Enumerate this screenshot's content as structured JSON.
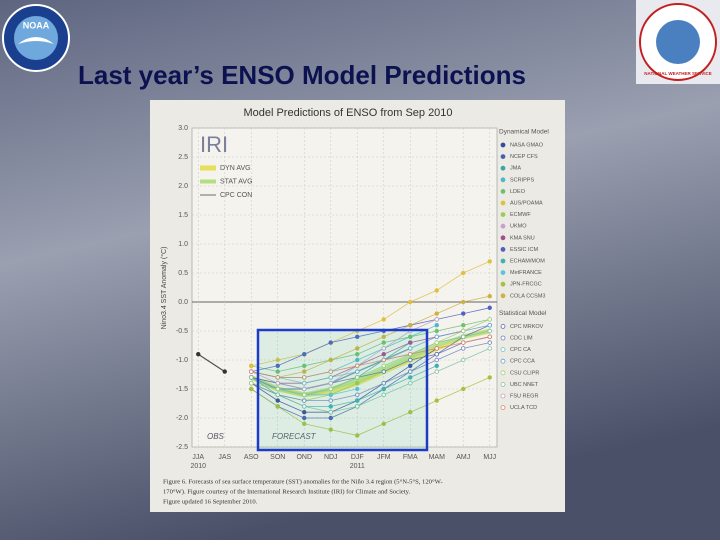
{
  "slide": {
    "title": "Last year’s ENSO Model Predictions",
    "logos": [
      "NOAA",
      "NATIONAL WEATHER SERVICE"
    ]
  },
  "chart_data": {
    "type": "line",
    "title": "Model Predictions of ENSO from Sep 2010",
    "y_label": "Nino3.4 SST Anomaly (°C)",
    "watermark": "IRI",
    "categories": [
      "JJA",
      "JAS",
      "ASO",
      "SON",
      "OND",
      "NDJ",
      "DJF",
      "JFM",
      "FMA",
      "MAM",
      "AMJ",
      "MJJ"
    ],
    "year_labels": [
      "2010",
      "2011"
    ],
    "annotations": [
      "FORECAST"
    ],
    "ylim": [
      -2.5,
      3.0
    ],
    "yticks": [
      -2.5,
      {
        "value": -2.0,
        "label": "-2.0"
      },
      -1.5,
      {
        "value": -1.0,
        "label": "-1.0"
      },
      -0.5,
      {
        "value": 0.0,
        "label": "0.0"
      },
      0.5,
      {
        "value": 1.0,
        "label": "1.0"
      },
      1.5,
      {
        "value": 2.0,
        "label": "2.0"
      },
      2.5,
      {
        "value": 3.0,
        "label": "3.0"
      }
    ],
    "grid": true,
    "observed": {
      "name": "OBS",
      "color": "#333333",
      "values": [
        -0.9,
        -1.2,
        null,
        null,
        null,
        null,
        null,
        null,
        null,
        null,
        null,
        null
      ]
    },
    "series": [
      {
        "name": "DYN AVG",
        "color": "#e6df5a",
        "line_width": 5,
        "values": [
          null,
          null,
          -1.3,
          -1.5,
          -1.6,
          -1.55,
          -1.4,
          -1.2,
          -1.0,
          -0.8,
          -0.6,
          -0.5
        ]
      },
      {
        "name": "STAT AVG",
        "color": "#b4de82",
        "line_width": 4,
        "values": [
          null,
          null,
          -1.3,
          -1.5,
          -1.6,
          -1.5,
          -1.35,
          -1.15,
          -0.95,
          -0.75,
          -0.6,
          -0.5
        ]
      },
      {
        "name": "CPC CON",
        "color": "#999999",
        "line_width": 1.5,
        "values": [
          null,
          null,
          -1.3,
          -1.5,
          -1.5,
          -1.4,
          -1.2,
          -1.0,
          -0.8,
          null,
          null,
          null
        ]
      }
    ],
    "legend_groups": [
      {
        "title": "Dynamical Model",
        "marker": "filled",
        "series": [
          {
            "name": "NASA GMAO",
            "color": "#3a4a9a",
            "values": [
              null,
              null,
              -1.4,
              -1.7,
              -1.9,
              -1.9,
              -1.7,
              -1.4,
              -1.1,
              -0.8,
              null,
              null
            ]
          },
          {
            "name": "NCEP CFS",
            "color": "#4a5fb0",
            "values": [
              null,
              null,
              -1.5,
              -1.8,
              -2.0,
              -2.0,
              -1.8,
              -1.5,
              -1.2,
              -0.9,
              -0.6,
              -0.4
            ]
          },
          {
            "name": "JMA",
            "color": "#3aa6a0",
            "values": [
              null,
              null,
              -1.3,
              -1.5,
              -1.6,
              -1.5,
              -1.3,
              -1.0,
              -0.7,
              null,
              null,
              null
            ]
          },
          {
            "name": "SCRIPPS",
            "color": "#4fb8c8",
            "values": [
              null,
              null,
              -1.2,
              -1.3,
              -1.3,
              -1.2,
              -1.0,
              -0.8,
              -0.6,
              -0.4,
              null,
              null
            ]
          },
          {
            "name": "LDEO",
            "color": "#6fc070",
            "values": [
              null,
              null,
              -1.1,
              -1.2,
              -1.1,
              -1.0,
              -0.9,
              -0.7,
              -0.6,
              -0.5,
              -0.4,
              -0.3
            ]
          },
          {
            "name": "AUS/POAMA",
            "color": "#e0c040",
            "values": [
              null,
              null,
              -1.1,
              -1.0,
              -0.9,
              -0.7,
              -0.5,
              -0.3,
              0.0,
              0.2,
              0.5,
              0.7
            ]
          },
          {
            "name": "ECMWF",
            "color": "#9ccc50",
            "values": [
              null,
              null,
              -1.4,
              -1.6,
              -1.7,
              -1.6,
              -1.4,
              -1.2,
              null,
              null,
              null,
              null
            ]
          },
          {
            "name": "UKMO",
            "color": "#c8a0d0",
            "values": [
              null,
              null,
              -1.3,
              -1.5,
              -1.6,
              -1.5,
              -1.3,
              null,
              null,
              null,
              null,
              null
            ]
          },
          {
            "name": "KMA SNU",
            "color": "#a05090",
            "values": [
              null,
              null,
              -1.3,
              -1.4,
              -1.4,
              -1.3,
              -1.1,
              -0.9,
              -0.7,
              -0.6,
              -0.5,
              null
            ]
          },
          {
            "name": "ESSIC ICM",
            "color": "#5060c0",
            "values": [
              null,
              null,
              -1.2,
              -1.1,
              -0.9,
              -0.7,
              -0.6,
              -0.5,
              -0.4,
              -0.3,
              -0.2,
              -0.1
            ]
          },
          {
            "name": "ECHAM/MOM",
            "color": "#40b0b0",
            "values": [
              null,
              null,
              -1.3,
              -1.6,
              -1.8,
              -1.8,
              -1.7,
              -1.5,
              -1.3,
              -1.1,
              null,
              null
            ]
          },
          {
            "name": "MetFRANCE",
            "color": "#60c0e0",
            "values": [
              null,
              null,
              -1.3,
              -1.5,
              -1.6,
              -1.6,
              -1.5,
              null,
              null,
              null,
              null,
              null
            ]
          },
          {
            "name": "JPN-FRCGC",
            "color": "#a8c040",
            "values": [
              null,
              null,
              -1.5,
              -1.8,
              -2.1,
              -2.2,
              -2.3,
              -2.1,
              -1.9,
              -1.7,
              -1.5,
              -1.3
            ]
          },
          {
            "name": "COLA CCSM3",
            "color": "#d0b040",
            "values": [
              null,
              null,
              -1.2,
              -1.3,
              -1.2,
              -1.0,
              -0.8,
              -0.6,
              -0.4,
              -0.2,
              0.0,
              0.1
            ]
          }
        ]
      },
      {
        "title": "Statistical Model",
        "marker": "open",
        "series": [
          {
            "name": "CPC MRKOV",
            "color": "#5a6ab0",
            "values": [
              null,
              null,
              -1.3,
              -1.4,
              -1.5,
              -1.4,
              -1.3,
              -1.2,
              -1.0,
              -0.9,
              -0.7,
              -0.6
            ]
          },
          {
            "name": "CDC LIM",
            "color": "#7080c0",
            "values": [
              null,
              null,
              -1.4,
              -1.6,
              -1.7,
              -1.7,
              -1.6,
              -1.4,
              -1.2,
              -1.0,
              -0.8,
              -0.7
            ]
          },
          {
            "name": "CPC CA",
            "color": "#70c0c0",
            "values": [
              null,
              null,
              -1.2,
              -1.3,
              -1.4,
              -1.3,
              -1.2,
              -1.0,
              -0.9,
              -0.7,
              -0.6,
              -0.5
            ]
          },
          {
            "name": "CPC CCA",
            "color": "#60a0d0",
            "values": [
              null,
              null,
              -1.3,
              -1.5,
              -1.5,
              -1.4,
              -1.2,
              -1.0,
              -0.8,
              -0.6,
              -0.5,
              -0.4
            ]
          },
          {
            "name": "CSU CLIPR",
            "color": "#a0d070",
            "values": [
              null,
              null,
              -1.4,
              -1.5,
              -1.6,
              -1.5,
              -1.3,
              -1.1,
              -0.9,
              -0.7,
              -0.5,
              -0.3
            ]
          },
          {
            "name": "UBC NNET",
            "color": "#80c0a0",
            "values": [
              null,
              null,
              -1.3,
              -1.6,
              -1.8,
              -1.9,
              -1.8,
              -1.6,
              -1.4,
              -1.2,
              -1.0,
              -0.8
            ]
          },
          {
            "name": "FSU REGR",
            "color": "#c0a0c0",
            "values": [
              null,
              null,
              -1.2,
              -1.4,
              -1.5,
              -1.4,
              -1.1,
              -0.8,
              -0.5,
              -0.3,
              null,
              null
            ]
          },
          {
            "name": "UCLA TCD",
            "color": "#e08060",
            "values": [
              null,
              null,
              -1.2,
              -1.3,
              -1.3,
              -1.2,
              -1.1,
              -1.0,
              -0.9,
              -0.8,
              -0.7,
              -0.6
            ]
          }
        ]
      }
    ],
    "caption": [
      "Figure 6. Forecasts of sea surface temperature (SST) anomalies for the Niño 3.4 region (5°N-5°S, 120°W-",
      "170°W). Figure courtesy of the International Research Institute (IRI) for Climate and Society.",
      "Figure updated 16 September 2010."
    ]
  }
}
